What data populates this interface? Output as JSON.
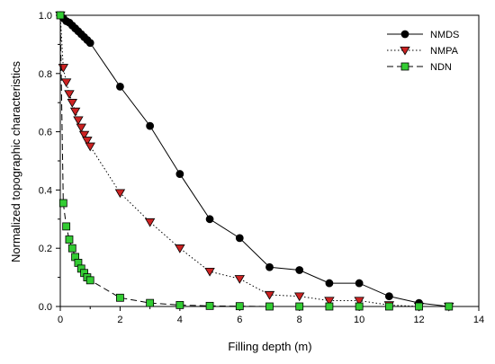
{
  "chart_data": {
    "type": "line",
    "title": "",
    "xlabel": "Filling depth (m)",
    "ylabel": "Normalized topographic characteristics",
    "xlim": [
      0,
      14
    ],
    "ylim": [
      0,
      1.0
    ],
    "xticks": [
      0,
      2,
      4,
      6,
      8,
      10,
      12,
      14
    ],
    "yticks": [
      0.0,
      0.2,
      0.4,
      0.6,
      0.8,
      1.0
    ],
    "xtick_labels": [
      "0",
      "2",
      "4",
      "6",
      "8",
      "10",
      "12",
      "14"
    ],
    "ytick_labels": [
      "0.0",
      "0.2",
      "0.4",
      "0.6",
      "0.8",
      "1.0"
    ],
    "grid": false,
    "legend_position": "top-right",
    "series": [
      {
        "name": "NMDS",
        "line_style": "solid",
        "marker": "circle",
        "color": "#000000",
        "marker_fill": "#000000",
        "x": [
          0,
          0.1,
          0.2,
          0.3,
          0.4,
          0.5,
          0.6,
          0.7,
          0.8,
          0.9,
          1,
          2,
          3,
          4,
          5,
          6,
          7,
          8,
          9,
          10,
          11,
          12,
          13
        ],
        "y": [
          1.0,
          0.99,
          0.98,
          0.975,
          0.965,
          0.955,
          0.945,
          0.935,
          0.925,
          0.915,
          0.905,
          0.755,
          0.62,
          0.455,
          0.3,
          0.235,
          0.135,
          0.125,
          0.08,
          0.08,
          0.035,
          0.012,
          0.0
        ]
      },
      {
        "name": "NMPA",
        "line_style": "dotted",
        "marker": "triangle-down",
        "color": "#000000",
        "marker_fill": "#cc2222",
        "x": [
          0,
          0.1,
          0.2,
          0.3,
          0.4,
          0.5,
          0.6,
          0.7,
          0.8,
          0.9,
          1,
          2,
          3,
          4,
          5,
          6,
          7,
          8,
          9,
          10,
          11,
          12,
          13
        ],
        "y": [
          1.0,
          0.82,
          0.77,
          0.73,
          0.7,
          0.67,
          0.64,
          0.615,
          0.59,
          0.57,
          0.55,
          0.39,
          0.29,
          0.2,
          0.12,
          0.095,
          0.04,
          0.035,
          0.02,
          0.02,
          0.005,
          0.0,
          0.0
        ]
      },
      {
        "name": "NDN",
        "line_style": "dashed",
        "marker": "square",
        "color": "#000000",
        "marker_fill": "#33cc33",
        "x": [
          0,
          0.1,
          0.2,
          0.3,
          0.4,
          0.5,
          0.6,
          0.7,
          0.8,
          0.9,
          1,
          2,
          3,
          4,
          5,
          6,
          7,
          8,
          9,
          10,
          11,
          12,
          13
        ],
        "y": [
          1.0,
          0.355,
          0.275,
          0.23,
          0.2,
          0.17,
          0.15,
          0.13,
          0.115,
          0.1,
          0.09,
          0.03,
          0.012,
          0.005,
          0.002,
          0.001,
          0.0,
          0.0,
          0.0,
          0.0,
          0.0,
          0.0,
          0.0
        ]
      }
    ]
  }
}
